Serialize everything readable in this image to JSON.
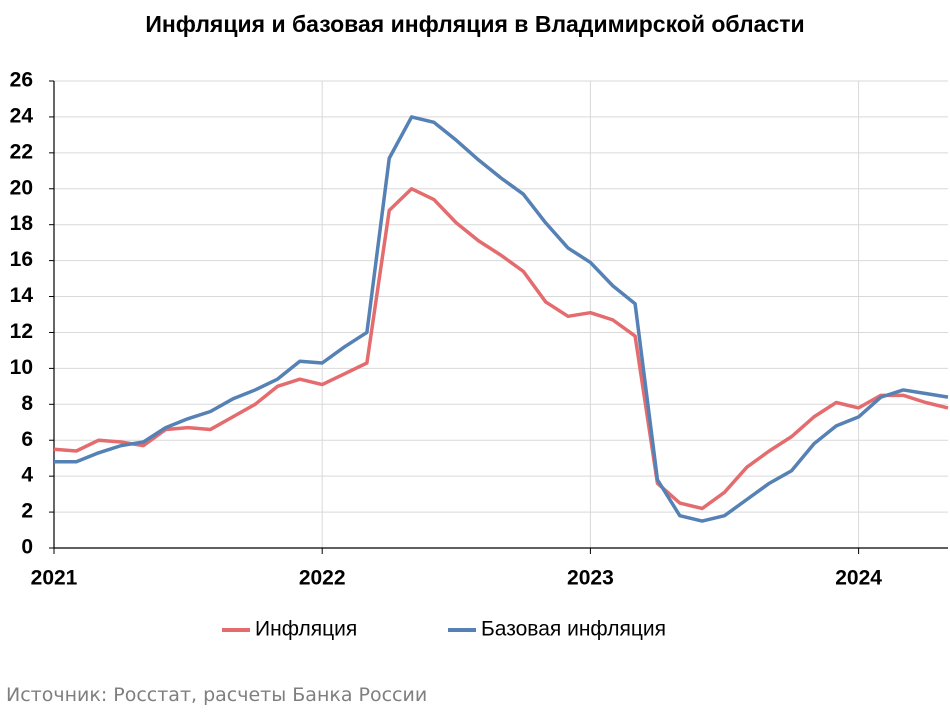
{
  "chart_data": {
    "type": "line",
    "title": "Инфляция и базовая инфляция в Владимирской области",
    "source": "Источник: Росстат, расчеты Банка России",
    "categories": [
      "2021",
      null,
      null,
      null,
      null,
      null,
      null,
      null,
      null,
      null,
      null,
      null,
      "2022",
      null,
      null,
      null,
      null,
      null,
      null,
      null,
      null,
      null,
      null,
      null,
      "2023",
      null,
      null,
      null,
      null,
      null,
      null,
      null,
      null,
      null,
      null,
      null,
      "2024",
      null,
      null,
      null,
      null
    ],
    "series": [
      {
        "name": "Инфляция",
        "color": "#e46c6e",
        "values": [
          5.5,
          5.4,
          6.0,
          5.9,
          5.7,
          6.6,
          6.7,
          6.6,
          7.3,
          8.0,
          9.0,
          9.4,
          9.1,
          9.7,
          10.3,
          18.8,
          20.0,
          19.4,
          18.1,
          17.1,
          16.3,
          15.4,
          13.7,
          12.9,
          13.1,
          12.7,
          11.8,
          3.6,
          2.5,
          2.2,
          3.1,
          4.5,
          5.4,
          6.2,
          7.3,
          8.1,
          7.8,
          8.5,
          8.5,
          8.1,
          7.8
        ]
      },
      {
        "name": "Базовая инфляция",
        "color": "#5581b5",
        "values": [
          4.8,
          4.8,
          5.3,
          5.7,
          5.9,
          6.7,
          7.2,
          7.6,
          8.3,
          8.8,
          9.4,
          10.4,
          10.3,
          11.2,
          12.0,
          21.7,
          24.0,
          23.7,
          22.7,
          21.6,
          20.6,
          19.7,
          18.1,
          16.7,
          15.9,
          14.6,
          13.6,
          3.8,
          1.8,
          1.5,
          1.8,
          2.7,
          3.6,
          4.3,
          5.8,
          6.8,
          7.3,
          8.4,
          8.8,
          8.6,
          8.4
        ]
      }
    ],
    "ylim": [
      0,
      26
    ],
    "yticks": [
      0,
      2,
      4,
      6,
      8,
      10,
      12,
      14,
      16,
      18,
      20,
      22,
      24,
      26
    ],
    "grid": true,
    "legend": "bottom"
  }
}
